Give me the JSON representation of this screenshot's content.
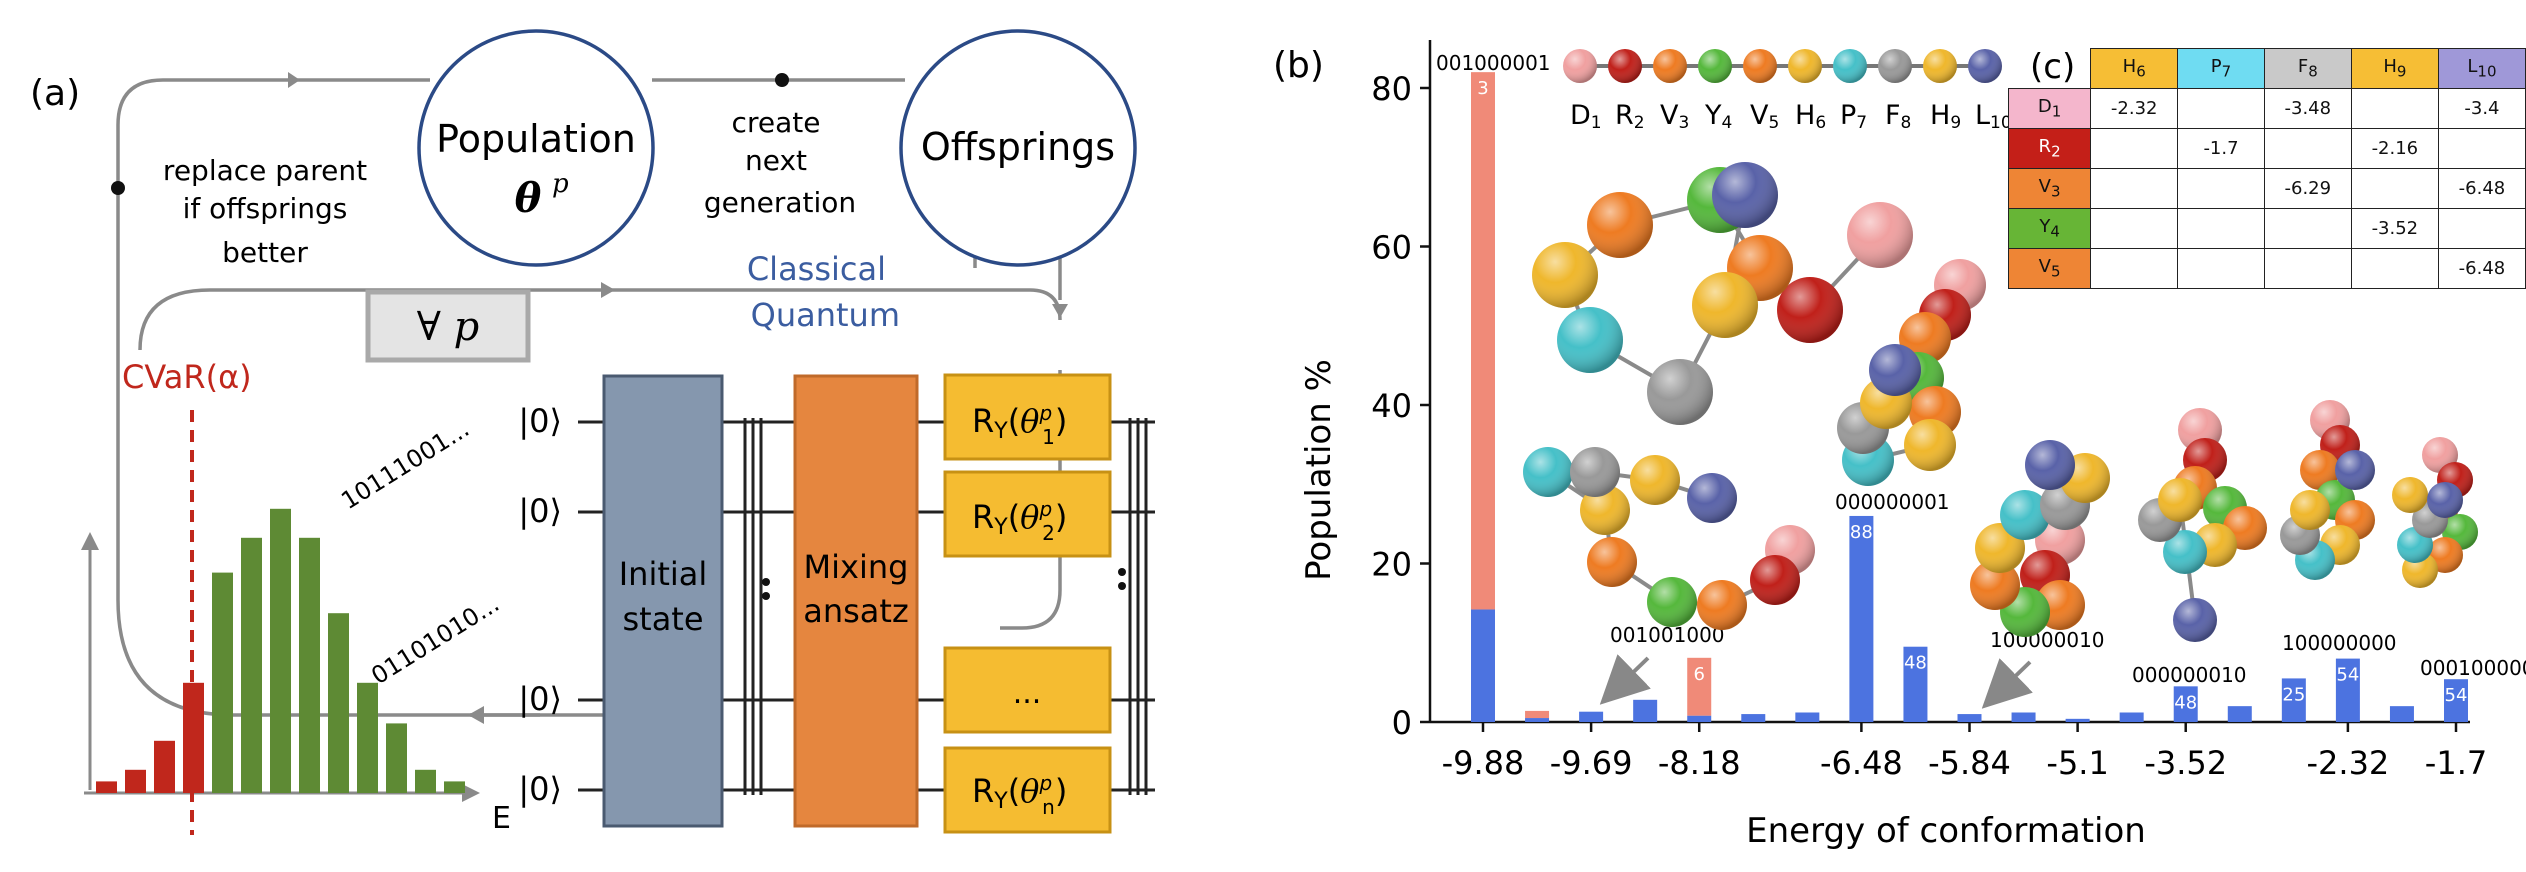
{
  "panel_labels": {
    "a": "(a)",
    "b": "(b)",
    "c": "(c)"
  },
  "panel_a": {
    "population_label": "Population",
    "population_symbol": "θ",
    "population_sup": "p",
    "offsprings_label": "Offsprings",
    "create_next_lines": [
      "create",
      "next",
      "generation"
    ],
    "replace_parent_lines": [
      "replace parent",
      "if offsprings",
      "better"
    ],
    "classical_label": "Classical",
    "quantum_label": "Quantum",
    "for_all_label": "∀ p",
    "cvar_label": "CVaR(α)",
    "bitstring_1": "10111001...",
    "bitstring_2": "01101010...",
    "energy_axis_label": "E",
    "qubit_label": "|0⟩",
    "initial_state_lines": [
      "Initial",
      "state"
    ],
    "mixing_ansatz_lines": [
      "Mixing",
      "ansatz"
    ],
    "gate_label": "R",
    "gate_sub": "Y",
    "gate_theta": "θ",
    "gate_sup": "p",
    "gate_indices": [
      "1",
      "2",
      "n"
    ],
    "gate_ellipsis": "...",
    "histogram_values": [
      2,
      4,
      9,
      19,
      38,
      44,
      49,
      44,
      31,
      19,
      12,
      4,
      2
    ],
    "histogram_colors": {
      "below_cvar": "#c0271c",
      "above_cvar": "#5e8a34"
    },
    "colors": {
      "circle_border": "#2b4a86",
      "initial_state": "#8597ae",
      "mixing": "#e5863f",
      "gate": "#f5bc31",
      "classical_text": "#3b5da0"
    }
  },
  "chart_data": {
    "type": "bar",
    "xlabel": "Energy of conformation",
    "ylabel": "Population %",
    "ylim": [
      0,
      85
    ],
    "yticks": [
      0,
      20,
      40,
      60,
      80
    ],
    "xtick_labels": [
      "-9.88",
      "-9.69",
      "-8.18",
      "-6.48",
      "-5.84",
      "-5.1",
      "-3.52",
      "-2.32",
      "-1.7"
    ],
    "series": [
      {
        "name": "",
        "color": "#4c73e0",
        "values": [
          14.2,
          0.5,
          1.3,
          2.8,
          0.8,
          1.0,
          1.2,
          26.0,
          9.5,
          1.0,
          1.2,
          0.4,
          1.2,
          4.5,
          2.0,
          5.5,
          8.0,
          2.0,
          5.4
        ]
      },
      {
        "name": "",
        "color": "#f08a78",
        "values": [
          67.8,
          0.9,
          0,
          0,
          7.3,
          0,
          0,
          0,
          0,
          0,
          0,
          0,
          0,
          0,
          0,
          0,
          0,
          0,
          0
        ]
      }
    ],
    "bar_labels": [
      {
        "bar": 0,
        "text": "3"
      },
      {
        "bar": 4,
        "text": "6"
      },
      {
        "bar": 7,
        "text": "88"
      },
      {
        "bar": 8,
        "text": "48"
      },
      {
        "bar": 13,
        "text": "48"
      },
      {
        "bar": 15,
        "text": "25"
      },
      {
        "bar": 16,
        "text": "54"
      },
      {
        "bar": 18,
        "text": "54"
      }
    ],
    "annotations": [
      "001000001",
      "001001000",
      "000000001",
      "100000010",
      "000000010",
      "100000000",
      "000100000"
    ],
    "legend_beads": [
      {
        "label": "D",
        "sub": "1",
        "color": "#f0a0a0"
      },
      {
        "label": "R",
        "sub": "2",
        "color": "#c0201a"
      },
      {
        "label": "V",
        "sub": "3",
        "color": "#ee7b22"
      },
      {
        "label": "Y",
        "sub": "4",
        "color": "#55b83c"
      },
      {
        "label": "V",
        "sub": "5",
        "color": "#ee7b22"
      },
      {
        "label": "H",
        "sub": "6",
        "color": "#efb72c"
      },
      {
        "label": "P",
        "sub": "7",
        "color": "#45c0c8"
      },
      {
        "label": "F",
        "sub": "8",
        "color": "#999999"
      },
      {
        "label": "H",
        "sub": "9",
        "color": "#efb72c"
      },
      {
        "label": "L",
        "sub": "10",
        "color": "#5962a8"
      }
    ]
  },
  "table_c": {
    "columns": [
      {
        "label": "H",
        "sub": "6",
        "color": "#f6be35"
      },
      {
        "label": "P",
        "sub": "7",
        "color": "#6fdcf2"
      },
      {
        "label": "F",
        "sub": "8",
        "color": "#c9c9c9"
      },
      {
        "label": "H",
        "sub": "9",
        "color": "#f6be35"
      },
      {
        "label": "L",
        "sub": "10",
        "color": "#9f98d8"
      }
    ],
    "rows": [
      {
        "label": "D",
        "sub": "1",
        "color": "#f4b6cc",
        "cells": [
          "-2.32",
          "",
          "-3.48",
          "",
          "-3.4"
        ]
      },
      {
        "label": "R",
        "sub": "2",
        "color": "#c41f18",
        "cells": [
          "",
          "-1.7",
          "",
          "-2.16",
          ""
        ]
      },
      {
        "label": "V",
        "sub": "3",
        "color": "#ee8535",
        "cells": [
          "",
          "",
          "-6.29",
          "",
          "-6.48"
        ]
      },
      {
        "label": "Y",
        "sub": "4",
        "color": "#67b536",
        "cells": [
          "",
          "",
          "",
          "-3.52",
          ""
        ]
      },
      {
        "label": "V",
        "sub": "5",
        "color": "#ee8535",
        "cells": [
          "",
          "",
          "",
          "",
          "-6.48"
        ]
      }
    ]
  }
}
